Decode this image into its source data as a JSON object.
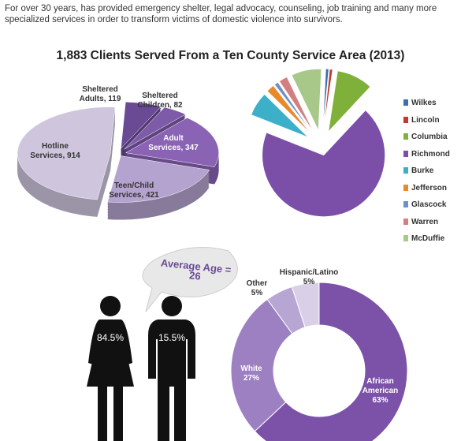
{
  "intro": "For over 30 years, has provided emergency shelter, legal advocacy, counseling, job training and many more specialized services in order to transform victims of domestic violence into survivors.",
  "title": "1,883 Clients Served From a Ten County Service Area (2013)",
  "average_age": "Average Age = 26",
  "gender": {
    "values": [
      84.5,
      15.5
    ],
    "value_labels": [
      "84.5%",
      "15.5%"
    ]
  },
  "chart_data": [
    {
      "type": "pie",
      "labels": [
        "Sheltered Adults, 119",
        "Sheltered Children, 82",
        "Adult Services, 347",
        "Teen/Child Services, 421",
        "Hotline Services, 914"
      ],
      "values": [
        119,
        82,
        347,
        421,
        914
      ],
      "colors": [
        "#6a4a94",
        "#7d5ba8",
        "#8a63b5",
        "#b4a3cf",
        "#cfc6de"
      ]
    },
    {
      "type": "pie",
      "categories": [
        "Wilkes",
        "Lincoln",
        "Columbia",
        "Richmond",
        "Burke",
        "Jefferson",
        "Glascock",
        "Warren",
        "McDuffie"
      ],
      "values": [
        15,
        15,
        180,
        1300,
        120,
        40,
        20,
        43,
        150
      ],
      "colors": [
        "#3a6fb0",
        "#c0392b",
        "#7fb03a",
        "#7b4fa8",
        "#3cb0c8",
        "#e8892a",
        "#6f8fc8",
        "#d47f7f",
        "#a8c88a"
      ],
      "legend": "right"
    },
    {
      "type": "donut",
      "categories": [
        "African American",
        "White",
        "Other",
        "Hispanic/Latino"
      ],
      "values": [
        63,
        27,
        5,
        5
      ],
      "value_labels": [
        "63%",
        "27%",
        "5%",
        "5%"
      ],
      "colors": [
        "#7b52a8",
        "#9d80c2",
        "#b7a6d4",
        "#d9d0e8"
      ]
    }
  ]
}
